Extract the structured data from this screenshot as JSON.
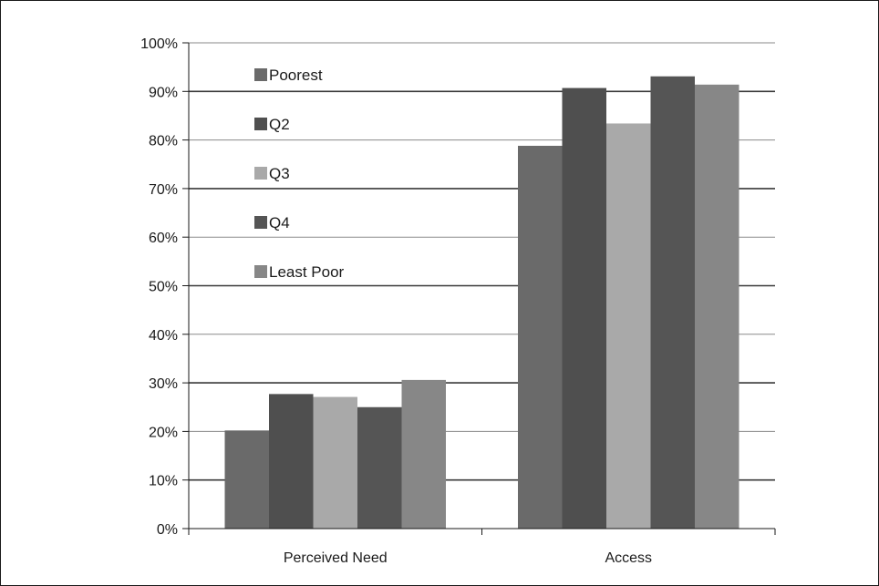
{
  "chart_data": {
    "type": "bar",
    "title": "",
    "xlabel": "",
    "ylabel": "",
    "categories": [
      "Perceived Need",
      "Access"
    ],
    "ylim": [
      0,
      100
    ],
    "y_ticks": [
      "0%",
      "10%",
      "20%",
      "30%",
      "40%",
      "50%",
      "60%",
      "70%",
      "80%",
      "90%",
      "100%"
    ],
    "grid": true,
    "legend_position": "top-left",
    "series": [
      {
        "name": "Poorest",
        "values": [
          20.2,
          78.8
        ],
        "color": "#6a6a6a"
      },
      {
        "name": "Q2",
        "values": [
          27.7,
          90.7
        ],
        "color": "#4f4f4f"
      },
      {
        "name": "Q3",
        "values": [
          27.1,
          83.4
        ],
        "color": "#a9a9a9"
      },
      {
        "name": "Q4",
        "values": [
          25.0,
          93.1
        ],
        "color": "#555555"
      },
      {
        "name": "Least Poor",
        "values": [
          30.6,
          91.4
        ],
        "color": "#878787"
      }
    ]
  }
}
